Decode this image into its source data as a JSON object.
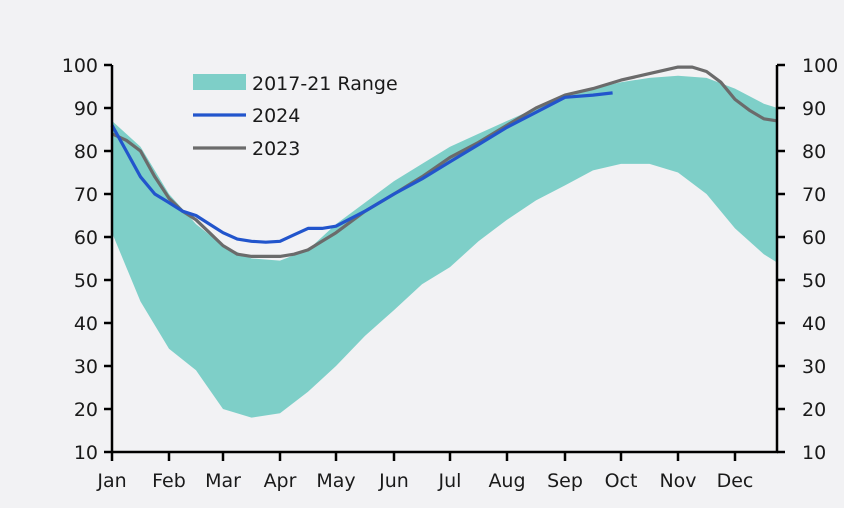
{
  "chart_data": {
    "type": "area",
    "title": "",
    "xlabel": "",
    "ylabel": "",
    "ylim": [
      10,
      100
    ],
    "y_ticks": [
      "100",
      "90",
      "80",
      "70",
      "60",
      "50",
      "40",
      "30",
      "20",
      "10"
    ],
    "y_tick_values": [
      100,
      90,
      80,
      70,
      60,
      50,
      40,
      30,
      20,
      10
    ],
    "categories": [
      "Jan",
      "Feb",
      "Mar",
      "Apr",
      "May",
      "Jun",
      "Jul",
      "Aug",
      "Sep",
      "Oct",
      "Nov",
      "Dec"
    ],
    "x_unit": "month index (0 = Jan)",
    "xlim": [
      0,
      11.74
    ],
    "legend_position": "top-left",
    "colors": {
      "range": "#7ecfc8",
      "y2024": "#2255cc",
      "y2023": "#6b6b6b",
      "axis": "#000000"
    },
    "range_series": {
      "name": "2017-21 Range",
      "x": [
        0,
        0.5,
        1,
        1.5,
        2,
        2.5,
        3,
        3.5,
        4,
        4.5,
        5,
        5.5,
        6,
        6.5,
        7,
        7.5,
        8,
        8.5,
        9,
        9.5,
        10,
        10.5,
        11,
        11.5,
        11.74
      ],
      "upper": [
        87,
        81,
        70,
        63,
        58,
        55,
        54.5,
        57,
        63,
        68,
        73,
        77,
        81,
        84,
        87,
        90,
        92.5,
        94.5,
        96,
        97,
        97.5,
        97,
        94.5,
        91,
        90
      ],
      "lower": [
        61,
        45,
        34,
        29,
        20,
        18,
        19,
        24,
        30,
        37,
        43,
        49,
        53,
        59,
        64,
        68.5,
        72,
        75.5,
        77,
        77,
        75,
        70,
        62,
        56,
        54
      ]
    },
    "series": [
      {
        "name": "2024",
        "x": [
          0,
          0.25,
          0.5,
          0.75,
          1,
          1.25,
          1.5,
          1.75,
          2,
          2.25,
          2.5,
          2.75,
          3,
          3.25,
          3.5,
          3.75,
          4,
          4.5,
          5,
          5.5,
          6,
          6.5,
          7,
          7.5,
          8,
          8.5,
          8.85
        ],
        "values": [
          86,
          80,
          74,
          70,
          68,
          66,
          65,
          63,
          61,
          59.5,
          59,
          58.8,
          59,
          60.5,
          62,
          62,
          62.5,
          66,
          70,
          73.5,
          77.5,
          81.5,
          85.5,
          89,
          92.5,
          93,
          93.5
        ]
      },
      {
        "name": "2023",
        "x": [
          0,
          0.25,
          0.5,
          0.75,
          1,
          1.25,
          1.5,
          1.75,
          2,
          2.25,
          2.5,
          2.75,
          3,
          3.25,
          3.5,
          3.75,
          4,
          4.5,
          5,
          5.5,
          6,
          6.5,
          7,
          7.5,
          8,
          8.5,
          9,
          9.5,
          10,
          10.25,
          10.5,
          10.75,
          11,
          11.25,
          11.5,
          11.74
        ],
        "values": [
          84,
          82.5,
          80,
          74,
          69,
          66,
          64,
          61,
          58,
          56,
          55.5,
          55.5,
          55.5,
          56,
          57,
          59,
          61,
          66,
          70,
          74,
          78.5,
          82,
          86,
          90,
          93,
          94.5,
          96.5,
          98,
          99.5,
          99.5,
          98.5,
          96,
          92,
          89.5,
          87.5,
          87
        ]
      }
    ]
  }
}
